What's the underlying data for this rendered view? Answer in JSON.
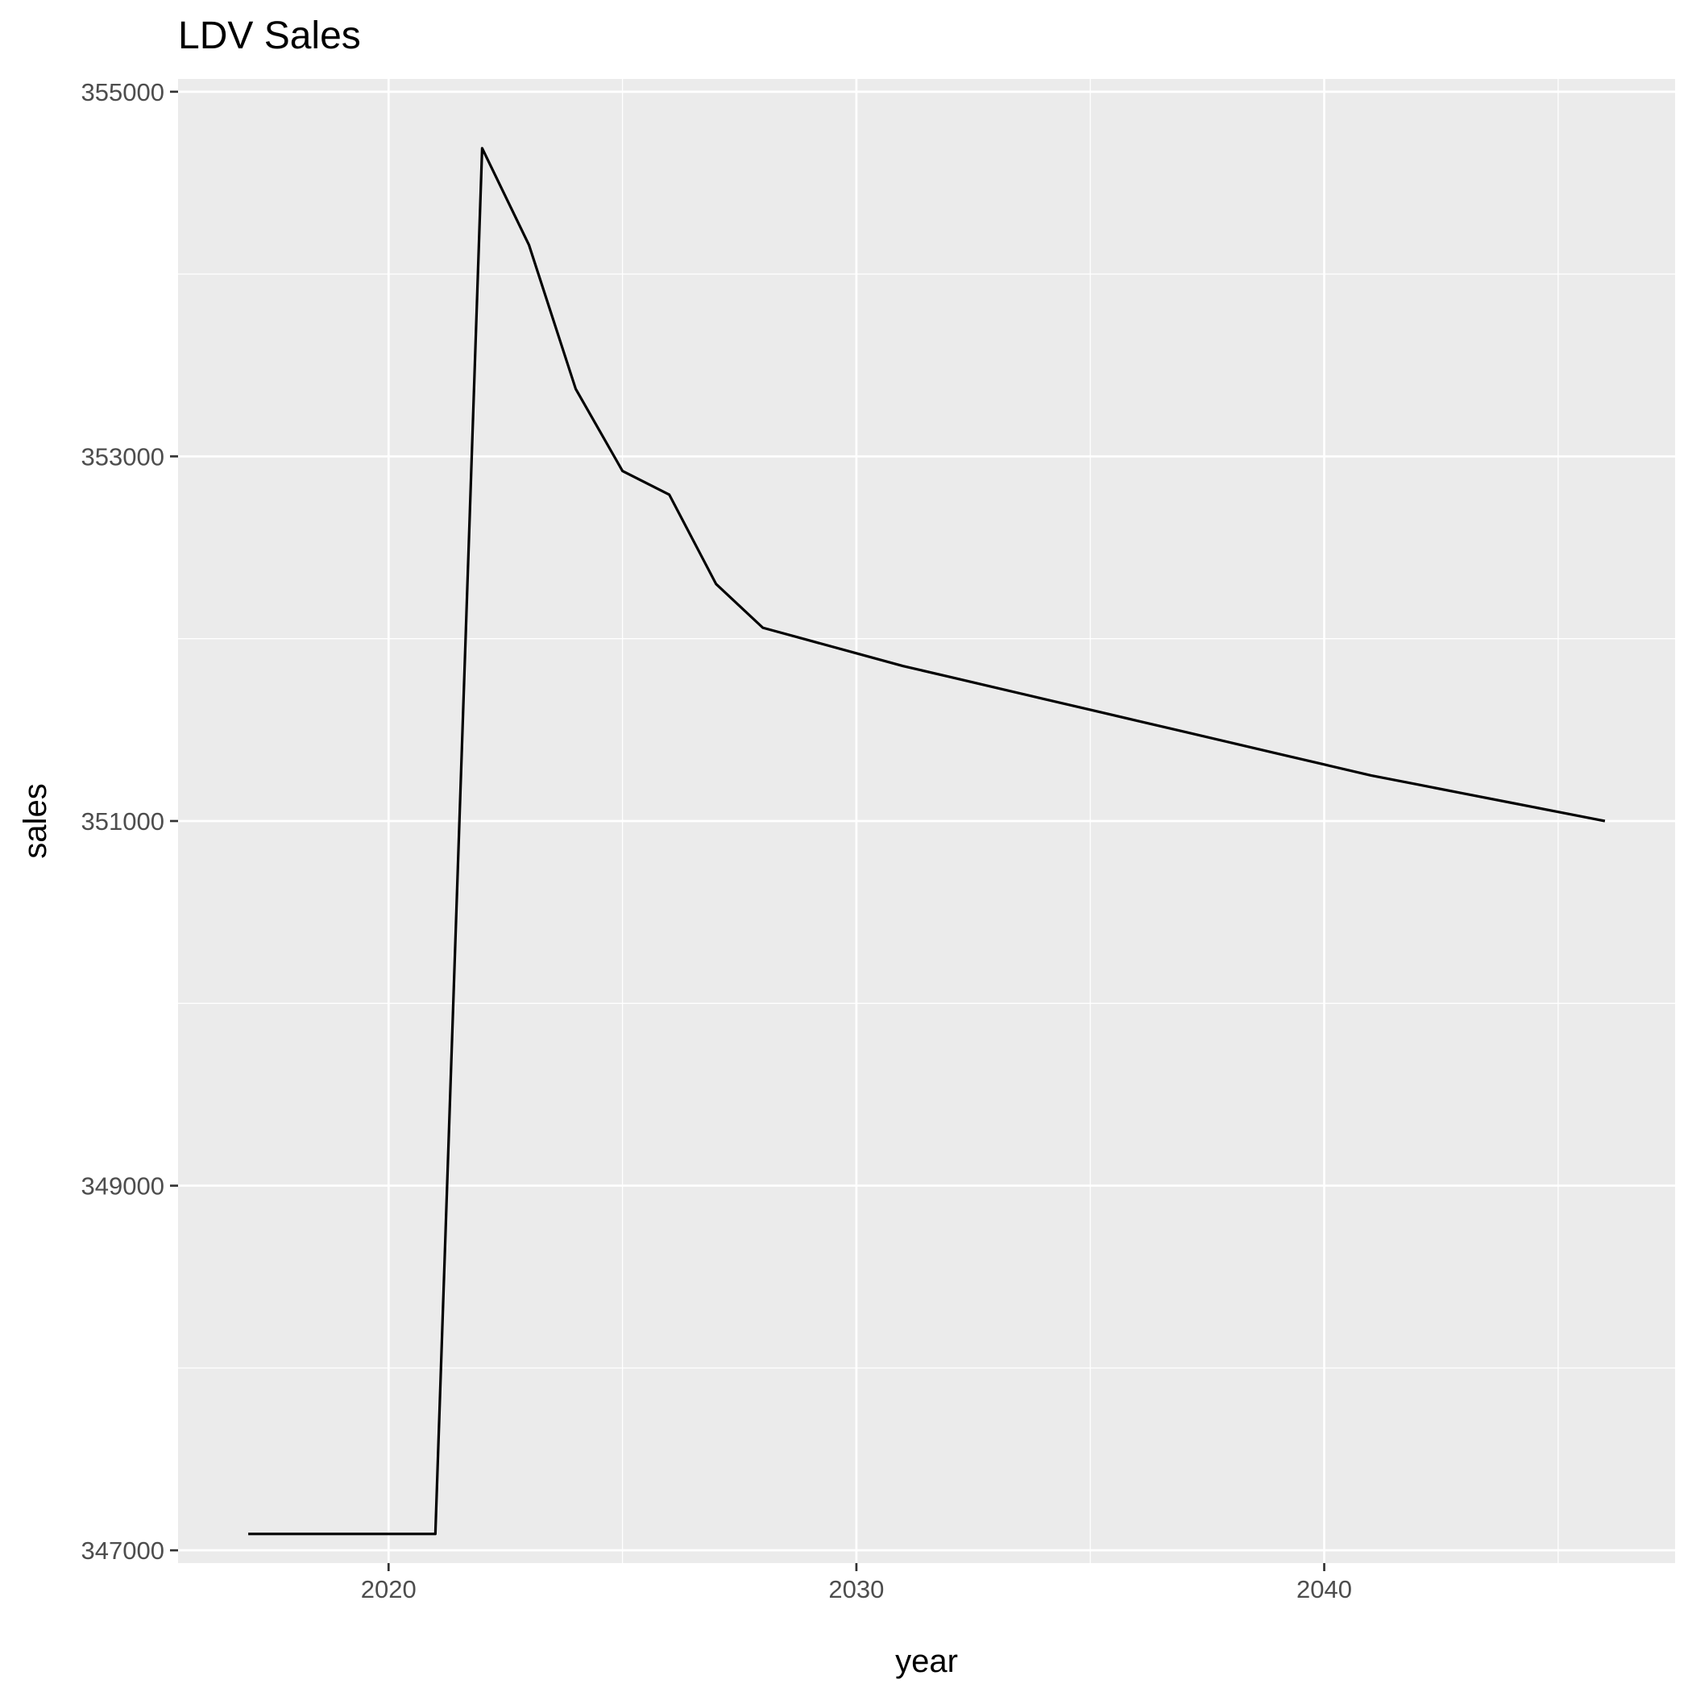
{
  "chart_data": {
    "type": "line",
    "title": "LDV Sales",
    "xlabel": "year",
    "ylabel": "sales",
    "xlim": [
      2015.5,
      2047.5
    ],
    "ylim": [
      346930,
      355070
    ],
    "x_ticks": [
      2020,
      2030,
      2040
    ],
    "y_ticks": [
      347000,
      349000,
      351000,
      353000,
      355000
    ],
    "x_minor_ticks": [
      2025,
      2035,
      2045
    ],
    "y_minor_ticks": [
      348000,
      350000,
      352000,
      354000
    ],
    "grid": true,
    "legend": "none",
    "colors": {
      "panel": "#ebebeb",
      "grid": "#ffffff",
      "line": "#000000",
      "tick": "#333333"
    },
    "series": [
      {
        "x": [
          2017,
          2018,
          2019,
          2020,
          2021,
          2022,
          2023,
          2024,
          2025,
          2026,
          2027,
          2028,
          2029,
          2030,
          2031,
          2032,
          2033,
          2034,
          2035,
          2036,
          2037,
          2038,
          2039,
          2040,
          2041,
          2042,
          2043,
          2044,
          2045,
          2046
        ],
        "y": [
          347090,
          347090,
          347090,
          347090,
          347090,
          354690,
          354160,
          353370,
          352920,
          352790,
          352300,
          352060,
          351990,
          351920,
          351850,
          351790,
          351730,
          351670,
          351610,
          351550,
          351490,
          351430,
          351370,
          351310,
          351250,
          351200,
          351150,
          351100,
          351050,
          351000
        ]
      }
    ]
  }
}
